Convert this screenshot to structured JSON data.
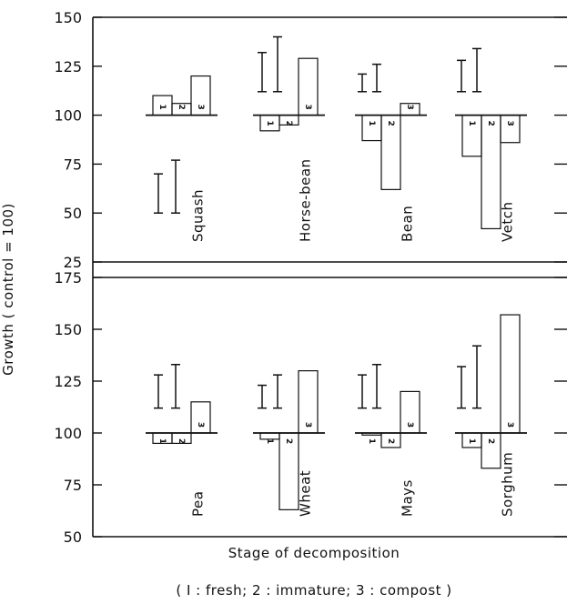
{
  "chart_data": {
    "type": "bar",
    "ylabel": "Growth  ( control = 100)",
    "xlabel": "Stage of decomposition",
    "caption": "( I : fresh;  2 : immature;  3 : compost )",
    "baseline": 100,
    "stage_labels": [
      "1",
      "2",
      "3"
    ],
    "panels": [
      {
        "ylim": [
          25,
          150
        ],
        "yticks": [
          25,
          50,
          75,
          100,
          125,
          150
        ],
        "crops": [
          {
            "name": "Squash",
            "values": [
              110,
              106,
              120
            ],
            "error_bars": [
              [
                50,
                70
              ],
              [
                50,
                77
              ]
            ]
          },
          {
            "name": "Horse-bean",
            "values": [
              92,
              95,
              129
            ],
            "error_bars": [
              [
                112,
                132
              ],
              [
                112,
                140
              ]
            ]
          },
          {
            "name": "Bean",
            "values": [
              87,
              62,
              106
            ],
            "error_bars": [
              [
                112,
                121
              ],
              [
                112,
                126
              ]
            ]
          },
          {
            "name": "Vetch",
            "values": [
              79,
              42,
              86
            ],
            "error_bars": [
              [
                112,
                128
              ],
              [
                112,
                134
              ]
            ]
          }
        ]
      },
      {
        "ylim": [
          50,
          175
        ],
        "yticks": [
          50,
          75,
          100,
          125,
          150,
          175
        ],
        "crops": [
          {
            "name": "Pea",
            "values": [
              95,
              95,
              115
            ],
            "error_bars": [
              [
                112,
                128
              ],
              [
                112,
                133
              ]
            ]
          },
          {
            "name": "Wheat",
            "values": [
              97,
              63,
              130
            ],
            "error_bars": [
              [
                112,
                123
              ],
              [
                112,
                128
              ]
            ]
          },
          {
            "name": "Mays",
            "values": [
              99,
              93,
              120
            ],
            "error_bars": [
              [
                112,
                128
              ],
              [
                112,
                133
              ]
            ]
          },
          {
            "name": "Sorghum",
            "values": [
              93,
              83,
              157
            ],
            "error_bars": [
              [
                112,
                132
              ],
              [
                112,
                142
              ]
            ]
          }
        ]
      }
    ]
  }
}
